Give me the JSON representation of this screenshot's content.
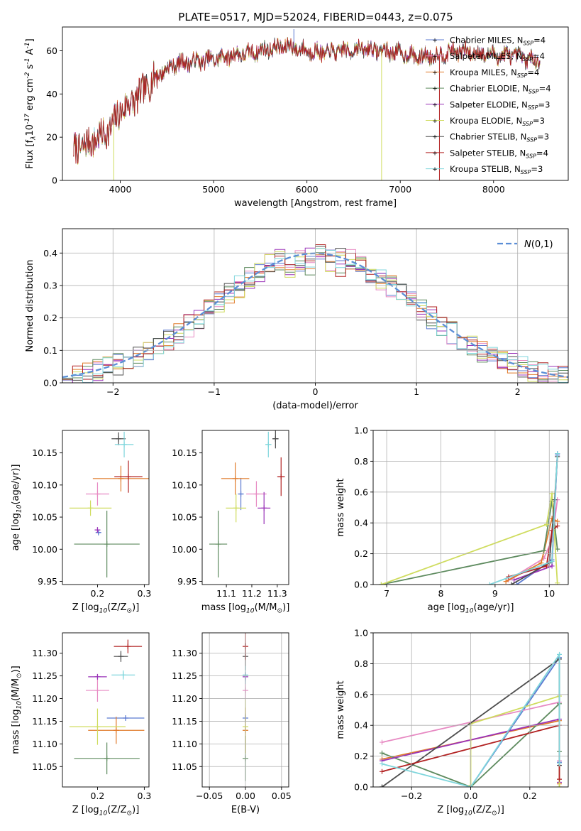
{
  "figure_title": "PLATE=0517, MJD=52024, FIBERID=0443, z=0.075",
  "series_names": [
    "Chabrier MILES, N$_{SSP}$=4",
    "Salpeter MILES, N$_{SSP}$=4",
    "Kroupa MILES, N$_{SSP}$=4",
    "Chabrier ELODIE, N$_{SSP}$=4",
    "Salpeter ELODIE, N$_{SSP}$=3",
    "Kroupa ELODIE, N$_{SSP}$=3",
    "Chabrier STELIB, N$_{SSP}$=3",
    "Salpeter STELIB, N$_{SSP}$=4",
    "Kroupa STELIB, N$_{SSP}$=3"
  ],
  "series_colors": [
    "#5b7ad1",
    "#e78ac3",
    "#e07b2b",
    "#5d8a5e",
    "#9a33b8",
    "#cfdc5e",
    "#4d4d4d",
    "#b22222",
    "#7fd6dc"
  ],
  "chart_data": [
    {
      "type": "line",
      "title": "PLATE=0517, MJD=52024, FIBERID=0443, z=0.075",
      "xlabel": "wavelength [Angstrom, rest frame]",
      "ylabel": "Flux [f$_\\lambda$10$^{-17}$ erg cm$^{-2}$ s$^{-1}$ A$^{-1}$]",
      "xlim": [
        3380,
        8800
      ],
      "ylim": [
        0,
        71
      ],
      "xticks": [
        4000,
        5000,
        6000,
        7000,
        8000
      ],
      "yticks": [
        0,
        20,
        40,
        60
      ],
      "legend": "right, inside",
      "spectrum_continuum": {
        "x": [
          3500,
          3700,
          3900,
          4000,
          4200,
          4400,
          4600,
          4800,
          5000,
          5200,
          5400,
          5600,
          5800,
          6000,
          6200,
          6400,
          6600,
          6800,
          7000,
          7200,
          7400,
          7600,
          7800,
          8000,
          8200,
          8400,
          8500
        ],
        "y": [
          14,
          18,
          24,
          32,
          39,
          49,
          54,
          55,
          56,
          58,
          59,
          61,
          62,
          60,
          59,
          60,
          61,
          60,
          59,
          57,
          58,
          60,
          59,
          58,
          58,
          56,
          55
        ]
      },
      "dropouts": [
        {
          "x": 3930,
          "y": 0,
          "series": "Kroupa ELODIE, N$_{SSP}$=3"
        },
        {
          "x": 6800,
          "y": 0,
          "series": "Kroupa ELODIE, N$_{SSP}$=3"
        },
        {
          "x": 7420,
          "y": 0,
          "series": "Salpeter STELIB, N$_{SSP}$=4"
        },
        {
          "x": 5860,
          "y": 70,
          "series": "Chabrier MILES, N$_{SSP}$=4"
        }
      ]
    },
    {
      "type": "line",
      "xlabel": "(data-model)/error",
      "ylabel": "Normed distribution",
      "xlim": [
        -2.5,
        2.5
      ],
      "ylim": [
        0,
        0.475
      ],
      "xticks": [
        -2,
        -1,
        0,
        1,
        2
      ],
      "yticks": [
        0.0,
        0.1,
        0.2,
        0.3,
        0.4
      ],
      "grid": true,
      "legend": "top-right",
      "gaussian": {
        "name": "$\\mathcal{N}(0,1)$",
        "mean": 0,
        "sigma": 1,
        "style": "dashed",
        "color": "#5b8ed6"
      },
      "histogram_bin_width": 0.1,
      "histogram_peak": 0.38
    },
    {
      "type": "scatter",
      "subtype": "errorbar",
      "xlabel": "Z [log$_{10}$(Z/Z$_\\odot$)]",
      "ylabel": "age  [log$_{10}$(age/yr)]",
      "xlim": [
        0.125,
        0.31
      ],
      "ylim": [
        9.945,
        10.185
      ],
      "xticks": [
        0.2,
        0.3
      ],
      "yticks": [
        9.95,
        10.0,
        10.05,
        10.1,
        10.15
      ],
      "points": [
        {
          "series": "Chabrier MILES, N$_{SSP}$=4",
          "x": 0.202,
          "y": 10.026,
          "xerr": 0.005,
          "yerr": 0.002
        },
        {
          "series": "Salpeter MILES, N$_{SSP}$=4",
          "x": 0.2,
          "y": 10.086,
          "xerr": 0.025,
          "yerr": 0.018
        },
        {
          "series": "Kroupa MILES, N$_{SSP}$=4",
          "x": 0.25,
          "y": 10.11,
          "xerr": 0.06,
          "yerr": 0.02
        },
        {
          "series": "Chabrier ELODIE, N$_{SSP}$=4",
          "x": 0.22,
          "y": 10.008,
          "xerr": 0.07,
          "yerr": 0.052
        },
        {
          "series": "Salpeter ELODIE, N$_{SSP}$=3",
          "x": 0.2,
          "y": 10.03,
          "xerr": 0.002,
          "yerr": 0.004
        },
        {
          "series": "Kroupa ELODIE, N$_{SSP}$=3",
          "x": 0.185,
          "y": 10.064,
          "xerr": 0.045,
          "yerr": 0.012
        },
        {
          "series": "Chabrier STELIB, N$_{SSP}$=3",
          "x": 0.245,
          "y": 10.172,
          "xerr": 0.015,
          "yerr": 0.01
        },
        {
          "series": "Salpeter STELIB, N$_{SSP}$=4",
          "x": 0.266,
          "y": 10.113,
          "xerr": 0.03,
          "yerr": 0.025
        },
        {
          "series": "Kroupa STELIB, N$_{SSP}$=3",
          "x": 0.257,
          "y": 10.163,
          "xerr": 0.02,
          "yerr": 0.02
        }
      ]
    },
    {
      "type": "scatter",
      "subtype": "errorbar",
      "xlabel": "mass [log$_{10}$(M/M$_\\odot$)]",
      "xlim": [
        11.005,
        11.345
      ],
      "ylim": [
        9.945,
        10.185
      ],
      "xticks": [
        11.1,
        11.2,
        11.3
      ],
      "yticks": [
        9.95,
        10.0,
        10.05,
        10.1,
        10.15
      ],
      "points": [
        {
          "series": "Chabrier MILES, N$_{SSP}$=4",
          "x": 11.157,
          "y": 10.086,
          "xerr": 0.01,
          "yerr": 0.025
        },
        {
          "series": "Salpeter MILES, N$_{SSP}$=4",
          "x": 11.218,
          "y": 10.086,
          "xerr": 0.04,
          "yerr": 0.02
        },
        {
          "series": "Kroupa MILES, N$_{SSP}$=4",
          "x": 11.135,
          "y": 10.11,
          "xerr": 0.055,
          "yerr": 0.025
        },
        {
          "series": "Chabrier ELODIE, N$_{SSP}$=4",
          "x": 11.068,
          "y": 10.008,
          "xerr": 0.035,
          "yerr": 0.052
        },
        {
          "series": "Salpeter ELODIE, N$_{SSP}$=3",
          "x": 11.248,
          "y": 10.064,
          "xerr": 0.025,
          "yerr": 0.025
        },
        {
          "series": "Kroupa ELODIE, N$_{SSP}$=3",
          "x": 11.138,
          "y": 10.064,
          "xerr": 0.04,
          "yerr": 0.022
        },
        {
          "series": "Chabrier STELIB, N$_{SSP}$=3",
          "x": 11.293,
          "y": 10.172,
          "xerr": 0.012,
          "yerr": 0.015
        },
        {
          "series": "Salpeter STELIB, N$_{SSP}$=4",
          "x": 11.315,
          "y": 10.113,
          "xerr": 0.015,
          "yerr": 0.03
        },
        {
          "series": "Kroupa STELIB, N$_{SSP}$=3",
          "x": 11.265,
          "y": 10.163,
          "xerr": 0.012,
          "yerr": 0.02
        }
      ]
    },
    {
      "type": "line",
      "xlabel": "age  [log$_{10}$(age/yr)]",
      "ylabel": "mass weight",
      "xlim": [
        6.75,
        10.35
      ],
      "ylim": [
        0,
        1.0
      ],
      "xticks": [
        7,
        8,
        9,
        10
      ],
      "yticks": [
        0.0,
        0.2,
        0.4,
        0.6,
        0.8,
        1.0
      ],
      "grid": true,
      "series": [
        {
          "name": "Chabrier MILES, N$_{SSP}$=4",
          "x": [
            9.4,
            10.05,
            10.15
          ],
          "y": [
            0.0,
            0.16,
            0.84
          ]
        },
        {
          "name": "Salpeter MILES, N$_{SSP}$=4",
          "x": [
            9.25,
            9.9,
            10.05,
            10.15
          ],
          "y": [
            0.03,
            0.17,
            0.29,
            0.55
          ]
        },
        {
          "name": "Kroupa MILES, N$_{SSP}$=4",
          "x": [
            9.2,
            9.85,
            10.05,
            10.15
          ],
          "y": [
            0.02,
            0.14,
            0.43,
            0.41
          ]
        },
        {
          "name": "Chabrier ELODIE, N$_{SSP}$=4",
          "x": [
            6.9,
            9.9,
            10.05,
            10.15
          ],
          "y": [
            0.0,
            0.22,
            0.54,
            0.23
          ]
        },
        {
          "name": "Salpeter ELODIE, N$_{SSP}$=3",
          "x": [
            9.35,
            10.05,
            10.15
          ],
          "y": [
            0.03,
            0.12,
            0.85
          ]
        },
        {
          "name": "Kroupa ELODIE, N$_{SSP}$=3",
          "x": [
            6.9,
            9.95,
            10.05,
            10.15
          ],
          "y": [
            0.0,
            0.39,
            0.59,
            0.01
          ]
        },
        {
          "name": "Chabrier STELIB, N$_{SSP}$=3",
          "x": [
            9.3,
            10.0,
            10.1,
            10.15
          ],
          "y": [
            0.0,
            0.14,
            0.55,
            0.83
          ]
        },
        {
          "name": "Salpeter STELIB, N$_{SSP}$=4",
          "x": [
            9.25,
            9.95,
            10.05,
            10.15
          ],
          "y": [
            0.05,
            0.12,
            0.35,
            0.38
          ]
        },
        {
          "name": "Kroupa STELIB, N$_{SSP}$=3",
          "x": [
            8.9,
            10.05,
            10.15
          ],
          "y": [
            0.0,
            0.15,
            0.85
          ]
        }
      ]
    },
    {
      "type": "scatter",
      "subtype": "errorbar",
      "xlabel": "Z [log$_{10}$(Z/Z$_\\odot$)]",
      "ylabel": "mass [log$_{10}$(M/M$_\\odot$)]",
      "xlim": [
        0.125,
        0.31
      ],
      "ylim": [
        11.005,
        11.345
      ],
      "xticks": [
        0.2,
        0.3
      ],
      "yticks": [
        11.05,
        11.1,
        11.15,
        11.2,
        11.25,
        11.3
      ],
      "points": [
        {
          "series": "Chabrier MILES, N$_{SSP}$=4",
          "x": 0.26,
          "y": 11.157,
          "xerr": 0.04,
          "yerr": 0.003
        },
        {
          "series": "Salpeter MILES, N$_{SSP}$=4",
          "x": 0.2,
          "y": 11.218,
          "xerr": 0.025,
          "yerr": 0.025
        },
        {
          "series": "Kroupa MILES, N$_{SSP}$=4",
          "x": 0.24,
          "y": 11.13,
          "xerr": 0.06,
          "yerr": 0.03
        },
        {
          "series": "Chabrier ELODIE, N$_{SSP}$=4",
          "x": 0.22,
          "y": 11.068,
          "xerr": 0.07,
          "yerr": 0.035
        },
        {
          "series": "Salpeter ELODIE, N$_{SSP}$=3",
          "x": 0.2,
          "y": 11.248,
          "xerr": 0.02,
          "yerr": 0.005
        },
        {
          "series": "Kroupa ELODIE, N$_{SSP}$=3",
          "x": 0.2,
          "y": 11.138,
          "xerr": 0.06,
          "yerr": 0.04
        },
        {
          "series": "Chabrier STELIB, N$_{SSP}$=3",
          "x": 0.25,
          "y": 11.293,
          "xerr": 0.015,
          "yerr": 0.012
        },
        {
          "series": "Salpeter STELIB, N$_{SSP}$=4",
          "x": 0.265,
          "y": 11.315,
          "xerr": 0.03,
          "yerr": 0.015
        },
        {
          "series": "Kroupa STELIB, N$_{SSP}$=3",
          "x": 0.255,
          "y": 11.252,
          "xerr": 0.025,
          "yerr": 0.01
        }
      ]
    },
    {
      "type": "scatter",
      "subtype": "errorbar",
      "xlabel": "E(B-V)",
      "xlim": [
        -0.06,
        0.06
      ],
      "ylim": [
        11.005,
        11.345
      ],
      "xticks": [
        -0.05,
        0.0,
        0.05
      ],
      "yticks": [
        11.05,
        11.1,
        11.15,
        11.2,
        11.25,
        11.3
      ],
      "points": [
        {
          "series": "Chabrier MILES, N$_{SSP}$=4",
          "x": 0.0,
          "y": 11.157,
          "xerr": 0.0,
          "yerr": 0.01
        },
        {
          "series": "Salpeter MILES, N$_{SSP}$=4",
          "x": 0.0,
          "y": 11.218,
          "xerr": 0.0,
          "yerr": 0.02
        },
        {
          "series": "Kroupa MILES, N$_{SSP}$=4",
          "x": 0.0,
          "y": 11.13,
          "xerr": 0.0,
          "yerr": 0.05
        },
        {
          "series": "Chabrier ELODIE, N$_{SSP}$=4",
          "x": 0.0,
          "y": 11.068,
          "xerr": 0.0,
          "yerr": 0.05
        },
        {
          "series": "Salpeter ELODIE, N$_{SSP}$=3",
          "x": 0.0,
          "y": 11.248,
          "xerr": 0.0,
          "yerr": 0.01
        },
        {
          "series": "Kroupa ELODIE, N$_{SSP}$=3",
          "x": 0.0,
          "y": 11.138,
          "xerr": 0.0,
          "yerr": 0.06
        },
        {
          "series": "Chabrier STELIB, N$_{SSP}$=3",
          "x": 0.0,
          "y": 11.293,
          "xerr": 0.0,
          "yerr": 0.03
        },
        {
          "series": "Salpeter STELIB, N$_{SSP}$=4",
          "x": 0.0,
          "y": 11.315,
          "xerr": 0.0,
          "yerr": 0.03
        },
        {
          "series": "Kroupa STELIB, N$_{SSP}$=3",
          "x": 0.0,
          "y": 11.252,
          "xerr": 0.0,
          "yerr": 0.02
        }
      ]
    },
    {
      "type": "line",
      "xlabel": "Z [log$_{10}$(Z/Z$_\\odot$)]",
      "ylabel": "mass weight",
      "xlim": [
        -0.33,
        0.33
      ],
      "ylim": [
        0,
        1.0
      ],
      "xticks": [
        -0.2,
        0.0,
        0.2
      ],
      "yticks": [
        0.0,
        0.2,
        0.4,
        0.6,
        0.8,
        1.0
      ],
      "grid": true,
      "series": [
        {
          "name": "Chabrier MILES, N$_{SSP}$=4",
          "x": [
            0.0,
            0.3,
            0.3
          ],
          "y": [
            0.0,
            0.84,
            0.16
          ]
        },
        {
          "name": "Salpeter MILES, N$_{SSP}$=4",
          "x": [
            -0.3,
            0.3,
            0.3
          ],
          "y": [
            0.29,
            0.55,
            0.17
          ]
        },
        {
          "name": "Kroupa MILES, N$_{SSP}$=4",
          "x": [
            -0.3,
            0.3,
            0.3
          ],
          "y": [
            0.18,
            0.43,
            0.02
          ]
        },
        {
          "name": "Chabrier ELODIE, N$_{SSP}$=4",
          "x": [
            -0.3,
            0.0,
            0.3,
            0.3
          ],
          "y": [
            0.22,
            0.0,
            0.54,
            0.23
          ]
        },
        {
          "name": "Salpeter ELODIE, N$_{SSP}$=3",
          "x": [
            -0.3,
            0.3,
            0.3
          ],
          "y": [
            0.17,
            0.44,
            0.03
          ]
        },
        {
          "name": "Kroupa ELODIE, N$_{SSP}$=3",
          "x": [
            0.0,
            0.0,
            0.3,
            0.3
          ],
          "y": [
            0.01,
            0.41,
            0.59,
            0.0
          ]
        },
        {
          "name": "Chabrier STELIB, N$_{SSP}$=3",
          "x": [
            -0.3,
            -0.3,
            0.3,
            0.3
          ],
          "y": [
            0.0,
            0.0,
            0.83,
            0.14
          ]
        },
        {
          "name": "Salpeter STELIB, N$_{SSP}$=4",
          "x": [
            -0.3,
            0.3,
            0.3
          ],
          "y": [
            0.1,
            0.4,
            0.05
          ]
        },
        {
          "name": "Kroupa STELIB, N$_{SSP}$=3",
          "x": [
            -0.3,
            0.0,
            0.3,
            0.3
          ],
          "y": [
            0.15,
            0.0,
            0.86,
            0.15
          ]
        }
      ]
    }
  ]
}
